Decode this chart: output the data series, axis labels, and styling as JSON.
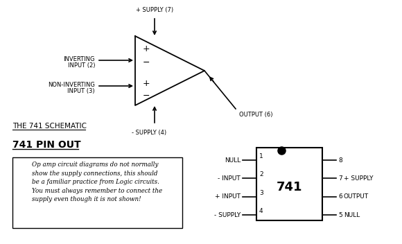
{
  "bg_color": "#ffffff",
  "title": "THE 741 SCHEMATIC",
  "pinout_title": "741 PIN OUT",
  "note_text": "Op amp circuit diagrams do not normally\nshow the supply connections, this should\nbe a familiar practice from Logic circuits.\nYou must always remember to connect the\nsupply even though it is not shown!",
  "supply_top_label": "+ SUPPLY (7)",
  "supply_bot_label": "- SUPPLY (4)",
  "output_label": "OUTPUT (6)",
  "inv_label1": "INVERTING",
  "inv_label2": "INPUT (2)",
  "noninv_label1": "NON-INVERTING",
  "noninv_label2": "INPUT (3)",
  "pin_labels_left": [
    "NULL",
    "- INPUT",
    "+ INPUT",
    "- SUPPLY"
  ],
  "pin_numbers_left": [
    "1",
    "2",
    "3",
    "4"
  ],
  "right_pins": [
    [
      "8",
      ""
    ],
    [
      "7",
      "+ SUPPLY"
    ],
    [
      "6",
      "OUTPUT"
    ],
    [
      "5",
      "NULL"
    ]
  ],
  "ic_label": "741"
}
